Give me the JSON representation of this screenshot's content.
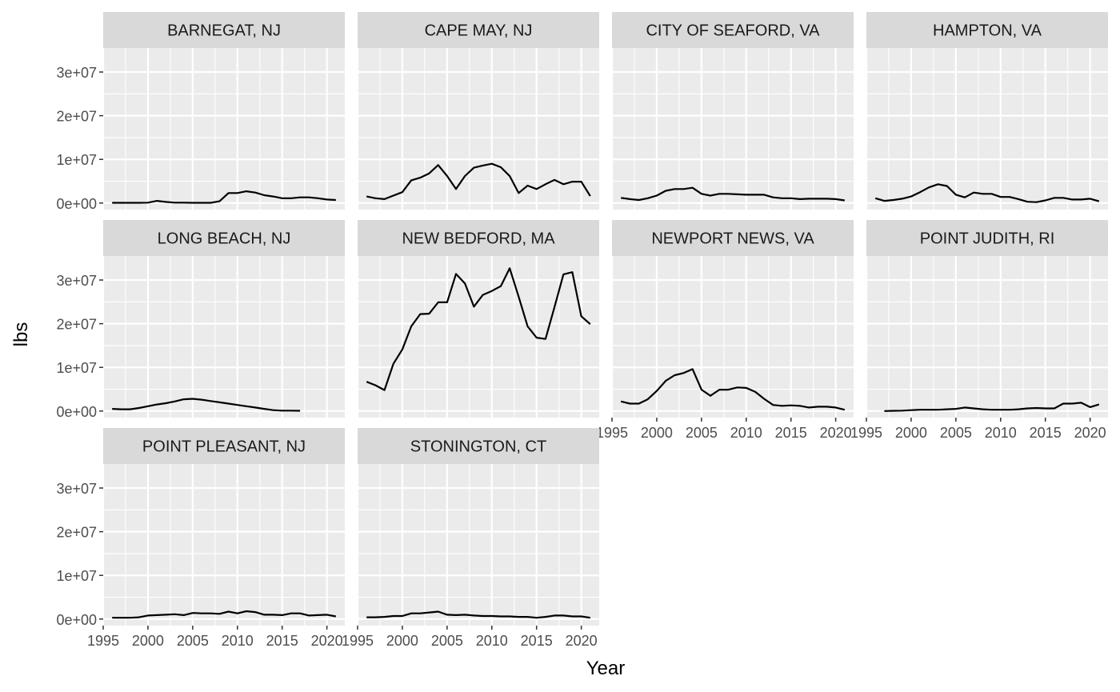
{
  "chart_data": {
    "type": "line",
    "xlabel": "Year",
    "ylabel": "lbs",
    "xlim": [
      1995,
      2022
    ],
    "ylim": [
      -1500000,
      35500000
    ],
    "x_ticks": [
      1995,
      2000,
      2005,
      2010,
      2015,
      2020
    ],
    "x_tick_labels": [
      "1995",
      "2000",
      "2005",
      "2010",
      "2015",
      "2020"
    ],
    "y_ticks": [
      0,
      10000000,
      20000000,
      30000000
    ],
    "y_tick_labels": [
      "0e+00",
      "1e+07",
      "2e+07",
      "3e+07"
    ],
    "grid": true,
    "line_color": "#000000",
    "panel_background": "#ebebeb",
    "strip_background": "#d9d9d9",
    "facets": [
      {
        "title": "BARNEGAT, NJ",
        "x": [
          1996,
          1997,
          1998,
          1999,
          2000,
          2001,
          2002,
          2003,
          2004,
          2005,
          2006,
          2007,
          2008,
          2009,
          2010,
          2011,
          2012,
          2013,
          2014,
          2015,
          2016,
          2017,
          2018,
          2019,
          2020,
          2021
        ],
        "y": [
          50000,
          50000,
          50000,
          50000,
          100000,
          500000,
          250000,
          100000,
          100000,
          50000,
          50000,
          50000,
          400000,
          2300000,
          2300000,
          2700000,
          2400000,
          1800000,
          1500000,
          1100000,
          1100000,
          1300000,
          1300000,
          1100000,
          800000,
          700000
        ]
      },
      {
        "title": "CAPE MAY, NJ",
        "x": [
          1996,
          1997,
          1998,
          1999,
          2000,
          2001,
          2002,
          2003,
          2004,
          2005,
          2006,
          2007,
          2008,
          2009,
          2010,
          2011,
          2012,
          2013,
          2014,
          2015,
          2016,
          2017,
          2018,
          2019,
          2020,
          2021
        ],
        "y": [
          1500000,
          1100000,
          900000,
          1700000,
          2500000,
          5200000,
          5800000,
          6800000,
          8700000,
          6200000,
          3200000,
          6200000,
          8100000,
          8600000,
          9000000,
          8200000,
          6200000,
          2300000,
          4000000,
          3200000,
          4300000,
          5300000,
          4300000,
          4900000,
          4900000,
          1600000
        ]
      },
      {
        "title": "CITY OF SEAFORD, VA",
        "x": [
          1996,
          1997,
          1998,
          1999,
          2000,
          2001,
          2002,
          2003,
          2004,
          2005,
          2006,
          2007,
          2008,
          2009,
          2010,
          2011,
          2012,
          2013,
          2014,
          2015,
          2016,
          2017,
          2018,
          2019,
          2020,
          2021
        ],
        "y": [
          1200000,
          900000,
          700000,
          1100000,
          1700000,
          2800000,
          3200000,
          3200000,
          3500000,
          2100000,
          1700000,
          2100000,
          2100000,
          2000000,
          1900000,
          1900000,
          1900000,
          1300000,
          1100000,
          1100000,
          900000,
          1000000,
          1000000,
          1000000,
          900000,
          600000
        ]
      },
      {
        "title": "HAMPTON, VA",
        "x": [
          1996,
          1997,
          1998,
          1999,
          2000,
          2001,
          2002,
          2003,
          2004,
          2005,
          2006,
          2007,
          2008,
          2009,
          2010,
          2011,
          2012,
          2013,
          2014,
          2015,
          2016,
          2017,
          2018,
          2019,
          2020,
          2021
        ],
        "y": [
          1100000,
          500000,
          700000,
          1000000,
          1500000,
          2500000,
          3600000,
          4300000,
          3900000,
          1900000,
          1300000,
          2400000,
          2100000,
          2100000,
          1400000,
          1400000,
          900000,
          300000,
          200000,
          600000,
          1200000,
          1200000,
          800000,
          800000,
          1000000,
          400000
        ]
      },
      {
        "title": "LONG BEACH, NJ",
        "x": [
          1996,
          1997,
          1998,
          1999,
          2000,
          2001,
          2002,
          2003,
          2004,
          2005,
          2006,
          2007,
          2008,
          2009,
          2010,
          2011,
          2012,
          2013,
          2014,
          2015,
          2016,
          2017
        ],
        "y": [
          500000,
          400000,
          400000,
          700000,
          1100000,
          1500000,
          1800000,
          2200000,
          2700000,
          2800000,
          2600000,
          2300000,
          2000000,
          1700000,
          1400000,
          1100000,
          800000,
          500000,
          200000,
          100000,
          100000,
          50000
        ]
      },
      {
        "title": "NEW BEDFORD, MA",
        "x": [
          1996,
          1997,
          1998,
          1999,
          2000,
          2001,
          2002,
          2003,
          2004,
          2005,
          2006,
          2007,
          2008,
          2009,
          2010,
          2011,
          2012,
          2013,
          2014,
          2015,
          2016,
          2017,
          2018,
          2019,
          2020,
          2021
        ],
        "y": [
          6700000,
          5900000,
          4800000,
          10800000,
          14100000,
          19400000,
          22200000,
          22300000,
          24900000,
          24900000,
          31400000,
          29200000,
          23900000,
          26600000,
          27500000,
          28600000,
          32700000,
          26200000,
          19400000,
          16800000,
          16500000,
          23800000,
          31300000,
          31800000,
          21700000,
          19900000
        ]
      },
      {
        "title": "NEWPORT NEWS, VA",
        "x": [
          1996,
          1997,
          1998,
          1999,
          2000,
          2001,
          2002,
          2003,
          2004,
          2005,
          2006,
          2007,
          2008,
          2009,
          2010,
          2011,
          2012,
          2013,
          2014,
          2015,
          2016,
          2017,
          2018,
          2019,
          2020,
          2021
        ],
        "y": [
          2200000,
          1700000,
          1700000,
          2700000,
          4600000,
          6900000,
          8200000,
          8700000,
          9600000,
          4900000,
          3500000,
          4900000,
          4900000,
          5400000,
          5300000,
          4400000,
          2800000,
          1400000,
          1200000,
          1300000,
          1200000,
          800000,
          1000000,
          1000000,
          800000,
          300000
        ]
      },
      {
        "title": "POINT JUDITH, RI",
        "x": [
          1997,
          1998,
          1999,
          2000,
          2001,
          2002,
          2003,
          2004,
          2005,
          2006,
          2007,
          2008,
          2009,
          2010,
          2011,
          2012,
          2013,
          2014,
          2015,
          2016,
          2017,
          2018,
          2019,
          2020,
          2021
        ],
        "y": [
          0,
          50000,
          100000,
          200000,
          300000,
          300000,
          300000,
          400000,
          500000,
          800000,
          600000,
          400000,
          300000,
          300000,
          300000,
          400000,
          600000,
          700000,
          600000,
          600000,
          1700000,
          1700000,
          1900000,
          900000,
          1500000
        ]
      },
      {
        "title": "POINT PLEASANT, NJ",
        "x": [
          1996,
          1997,
          1998,
          1999,
          2000,
          2001,
          2002,
          2003,
          2004,
          2005,
          2006,
          2007,
          2008,
          2009,
          2010,
          2011,
          2012,
          2013,
          2014,
          2015,
          2016,
          2017,
          2018,
          2019,
          2020,
          2021
        ],
        "y": [
          300000,
          300000,
          300000,
          400000,
          800000,
          900000,
          1000000,
          1100000,
          900000,
          1400000,
          1300000,
          1300000,
          1200000,
          1700000,
          1300000,
          1800000,
          1600000,
          1000000,
          1000000,
          900000,
          1300000,
          1300000,
          800000,
          900000,
          1000000,
          600000
        ]
      },
      {
        "title": "STONINGTON, CT",
        "x": [
          1996,
          1997,
          1998,
          1999,
          2000,
          2001,
          2002,
          2003,
          2004,
          2005,
          2006,
          2007,
          2008,
          2009,
          2010,
          2011,
          2012,
          2013,
          2014,
          2015,
          2016,
          2017,
          2018,
          2019,
          2020,
          2021
        ],
        "y": [
          400000,
          400000,
          500000,
          700000,
          700000,
          1300000,
          1300000,
          1500000,
          1700000,
          1000000,
          900000,
          1000000,
          800000,
          700000,
          700000,
          600000,
          600000,
          500000,
          500000,
          300000,
          500000,
          800000,
          800000,
          600000,
          600000,
          300000
        ]
      }
    ]
  }
}
